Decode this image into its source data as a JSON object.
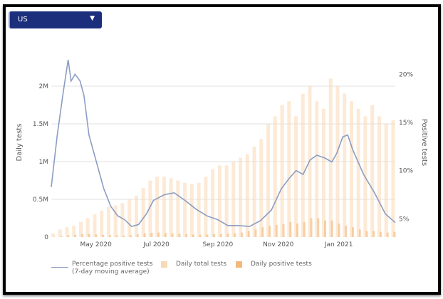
{
  "dropdown": {
    "selected": "US",
    "caret_icon": "triangle-down"
  },
  "chart_data": {
    "type": "bar+line",
    "y_left": {
      "label": "Daily tests",
      "ticks": [
        "0",
        "0.5M",
        "1M",
        "1.5M",
        "2M"
      ],
      "tick_values": [
        0,
        0.5,
        1,
        1.5,
        2
      ],
      "ylim": [
        0,
        2.4
      ],
      "unit": "M"
    },
    "y_right": {
      "label": "Positive tests",
      "ticks": [
        "5%",
        "10%",
        "15%",
        "20%"
      ],
      "tick_values": [
        5,
        10,
        15,
        20
      ],
      "ylim": [
        3.1,
        21.9
      ]
    },
    "x_ticks": [
      {
        "label": "May 2020",
        "date": "2020-05-01"
      },
      {
        "label": "Jul 2020",
        "date": "2020-07-01"
      },
      {
        "label": "Sep 2020",
        "date": "2020-09-01"
      },
      {
        "label": "Nov 2020",
        "date": "2020-11-01"
      },
      {
        "label": "Jan 2021",
        "date": "2021-01-01"
      }
    ],
    "xlim": [
      "2020-03-17",
      "2021-02-27"
    ],
    "grid": true,
    "legend_position": "bottom",
    "series": [
      {
        "name": "Percentage positive tests (7-day moving average)",
        "name_line1": "Percentage positive tests",
        "name_line2": "(7-day moving average)",
        "kind": "line",
        "axis": "right",
        "color": "#8b9dc3",
        "points": [
          [
            "2020-03-17",
            8.3
          ],
          [
            "2020-03-23",
            13.7
          ],
          [
            "2020-03-29",
            18.1
          ],
          [
            "2020-04-03",
            21.5
          ],
          [
            "2020-04-06",
            19.3
          ],
          [
            "2020-04-10",
            20.0
          ],
          [
            "2020-04-15",
            19.3
          ],
          [
            "2020-04-19",
            17.8
          ],
          [
            "2020-04-24",
            13.7
          ],
          [
            "2020-05-01",
            11.1
          ],
          [
            "2020-05-09",
            8.1
          ],
          [
            "2020-05-16",
            6.3
          ],
          [
            "2020-05-23",
            5.3
          ],
          [
            "2020-05-30",
            4.9
          ],
          [
            "2020-06-06",
            4.2
          ],
          [
            "2020-06-13",
            4.4
          ],
          [
            "2020-06-21",
            5.5
          ],
          [
            "2020-06-28",
            6.9
          ],
          [
            "2020-07-09",
            7.5
          ],
          [
            "2020-07-19",
            7.7
          ],
          [
            "2020-07-30",
            6.9
          ],
          [
            "2020-08-10",
            6.0
          ],
          [
            "2020-08-21",
            5.3
          ],
          [
            "2020-09-01",
            4.9
          ],
          [
            "2020-09-11",
            4.3
          ],
          [
            "2020-09-22",
            4.3
          ],
          [
            "2020-10-03",
            4.2
          ],
          [
            "2020-10-14",
            4.8
          ],
          [
            "2020-10-25",
            5.9
          ],
          [
            "2020-11-04",
            8.1
          ],
          [
            "2020-11-12",
            9.2
          ],
          [
            "2020-11-19",
            10.0
          ],
          [
            "2020-11-26",
            9.6
          ],
          [
            "2020-12-03",
            11.1
          ],
          [
            "2020-12-10",
            11.6
          ],
          [
            "2020-12-18",
            11.3
          ],
          [
            "2020-12-25",
            10.9
          ],
          [
            "2020-12-30",
            11.8
          ],
          [
            "2021-01-05",
            13.5
          ],
          [
            "2021-01-10",
            13.7
          ],
          [
            "2021-01-15",
            12.2
          ],
          [
            "2021-01-26",
            9.6
          ],
          [
            "2021-02-06",
            7.7
          ],
          [
            "2021-02-17",
            5.5
          ],
          [
            "2021-02-27",
            4.6
          ]
        ]
      },
      {
        "name": "Daily total tests",
        "kind": "bar",
        "axis": "left",
        "color": "#f9d9b5",
        "start": "2020-03-17",
        "step_days": 7,
        "values": [
          0.05,
          0.1,
          0.13,
          0.15,
          0.2,
          0.25,
          0.3,
          0.35,
          0.4,
          0.42,
          0.45,
          0.5,
          0.55,
          0.65,
          0.75,
          0.8,
          0.8,
          0.78,
          0.75,
          0.72,
          0.7,
          0.72,
          0.8,
          0.9,
          0.95,
          0.95,
          1.0,
          1.05,
          1.1,
          1.2,
          1.3,
          1.5,
          1.6,
          1.75,
          1.8,
          1.6,
          1.9,
          2.0,
          1.8,
          1.7,
          2.1,
          2.0,
          1.9,
          1.8,
          1.7,
          1.6,
          1.75,
          1.6,
          1.5,
          1.55
        ]
      },
      {
        "name": "Daily positive tests",
        "kind": "bar",
        "axis": "left",
        "color": "#f3b87a",
        "start": "2020-03-17",
        "step_days": 7,
        "values": [
          0.004,
          0.013,
          0.023,
          0.03,
          0.04,
          0.04,
          0.035,
          0.03,
          0.025,
          0.022,
          0.02,
          0.025,
          0.035,
          0.05,
          0.055,
          0.06,
          0.055,
          0.05,
          0.045,
          0.04,
          0.035,
          0.032,
          0.035,
          0.04,
          0.042,
          0.045,
          0.05,
          0.06,
          0.08,
          0.1,
          0.13,
          0.15,
          0.16,
          0.17,
          0.2,
          0.18,
          0.2,
          0.25,
          0.25,
          0.22,
          0.22,
          0.18,
          0.15,
          0.13,
          0.1,
          0.08,
          0.08,
          0.07,
          0.06,
          0.07
        ]
      }
    ]
  }
}
